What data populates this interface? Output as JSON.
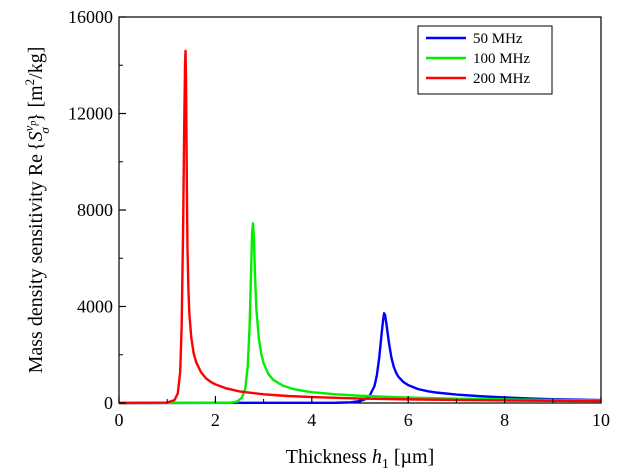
{
  "chart_data": {
    "type": "line",
    "title": "",
    "xlabel": {
      "prefix": "Thickness ",
      "var": "h",
      "sub": "1",
      "unit": "  [µm]"
    },
    "ylabel": {
      "prefix": "Mass density sensitivity  Re",
      "brace_open": "{",
      "var": "S",
      "sup": "v",
      "supsub": "p",
      "sub": "σ",
      "brace_close": "}",
      "unit_open": " [m",
      "unit_sup": "2",
      "unit_close": "/kg]"
    },
    "xlim": [
      0,
      10
    ],
    "ylim": [
      0,
      16000
    ],
    "xticks": [
      0,
      2,
      4,
      6,
      8,
      10
    ],
    "xtick_labels": [
      "0",
      "2",
      "4",
      "6",
      "8",
      "10"
    ],
    "yticks": [
      0,
      4000,
      8000,
      12000,
      16000
    ],
    "ytick_labels": [
      "0",
      "4000",
      "8000",
      "12000",
      "16000"
    ],
    "grid": false,
    "legend": {
      "position": "top-right"
    },
    "series": [
      {
        "name": "50 MHz",
        "color": "#0000ff",
        "x": [
          0,
          4.5,
          4.8,
          5.0,
          5.1,
          5.2,
          5.3,
          5.35,
          5.4,
          5.45,
          5.48,
          5.5,
          5.52,
          5.55,
          5.6,
          5.65,
          5.7,
          5.75,
          5.8,
          5.9,
          6.0,
          6.2,
          6.4,
          6.6,
          7.0,
          7.5,
          8.0,
          8.5,
          9.0,
          10.0
        ],
        "y": [
          0,
          10,
          30,
          80,
          150,
          300,
          700,
          1150,
          1900,
          2900,
          3450,
          3720,
          3650,
          3250,
          2500,
          1900,
          1500,
          1250,
          1080,
          870,
          740,
          580,
          490,
          430,
          350,
          280,
          230,
          190,
          160,
          120
        ]
      },
      {
        "name": "100 MHz",
        "color": "#00ee00",
        "x": [
          0,
          2.3,
          2.45,
          2.55,
          2.62,
          2.67,
          2.71,
          2.74,
          2.76,
          2.78,
          2.8,
          2.82,
          2.85,
          2.9,
          2.95,
          3.0,
          3.1,
          3.2,
          3.4,
          3.6,
          3.8,
          4.0,
          4.5,
          5.0,
          6.0,
          7.0,
          8.0,
          9.0,
          10.0
        ],
        "y": [
          0,
          10,
          60,
          220,
          600,
          1500,
          3200,
          5400,
          7000,
          7450,
          6800,
          5400,
          3900,
          2700,
          2050,
          1650,
          1200,
          960,
          720,
          590,
          510,
          450,
          360,
          300,
          225,
          180,
          150,
          125,
          105
        ]
      },
      {
        "name": "200 MHz",
        "color": "#ff0000",
        "x": [
          0,
          1.0,
          1.15,
          1.22,
          1.27,
          1.3,
          1.33,
          1.35,
          1.37,
          1.38,
          1.39,
          1.4,
          1.41,
          1.42,
          1.44,
          1.46,
          1.5,
          1.55,
          1.6,
          1.7,
          1.8,
          1.9,
          2.0,
          2.2,
          2.5,
          3.0,
          3.5,
          4.0,
          5.0,
          6.0,
          7.0,
          8.0,
          9.0,
          10.0
        ],
        "y": [
          0,
          20,
          120,
          400,
          1300,
          3200,
          7200,
          11000,
          14000,
          14600,
          13500,
          11000,
          8500,
          6500,
          4700,
          3700,
          2700,
          2050,
          1700,
          1280,
          1030,
          880,
          770,
          620,
          480,
          360,
          290,
          245,
          185,
          150,
          125,
          105,
          90,
          80
        ]
      }
    ]
  }
}
